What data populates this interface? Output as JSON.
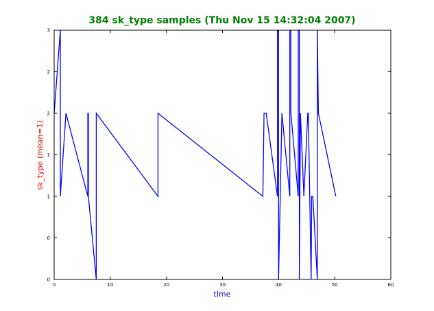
{
  "chart_data": {
    "type": "line",
    "title": "384 sk_type samples (Thu Nov 15 14:32:04 2007)",
    "xlabel": "time",
    "ylabel": "sk_type (mean=1)",
    "xlim": [
      0,
      60
    ],
    "ylim": [
      0,
      3
    ],
    "x_ticks": [
      "0",
      "10",
      "20",
      "30",
      "40",
      "50",
      "60"
    ],
    "y_ticks": [
      "0",
      "0",
      "1",
      "1",
      "2",
      "2",
      "3"
    ],
    "grid": false,
    "series": [
      {
        "color": "#0000ff",
        "x": [
          0.0,
          1.1,
          1.1,
          2.1,
          6.0,
          6.0,
          6.1,
          6.1,
          7.5,
          7.5,
          7.5,
          18.5,
          18.5,
          18.5,
          37.2,
          37.4,
          37.6,
          37.8,
          39.8,
          39.8,
          40.0,
          40.0,
          40.6,
          42.0,
          42.0,
          42.2,
          42.2,
          43.5,
          43.5,
          43.7,
          43.7,
          43.9,
          44.5,
          45.2,
          45.3,
          45.8,
          45.9,
          46.1,
          46.9,
          46.9,
          47.1,
          50.2
        ],
        "y": [
          2.0,
          3.0,
          1.0,
          2.0,
          1.0,
          2.0,
          2.0,
          1.0,
          0.0,
          2.0,
          2.0,
          1.0,
          2.0,
          2.0,
          1.0,
          2.0,
          2.0,
          2.0,
          1.0,
          3.0,
          3.0,
          0.0,
          2.0,
          1.0,
          3.0,
          3.0,
          2.0,
          1.0,
          3.0,
          3.0,
          0.0,
          2.0,
          1.0,
          2.0,
          2.0,
          0.0,
          1.0,
          1.0,
          0.0,
          3.0,
          2.0,
          1.0
        ]
      }
    ]
  },
  "colors": {
    "title": "#008000",
    "xlabel": "#0000cc",
    "ylabel": "#ff0000",
    "line": "#0000ff",
    "axes": "#000000"
  }
}
